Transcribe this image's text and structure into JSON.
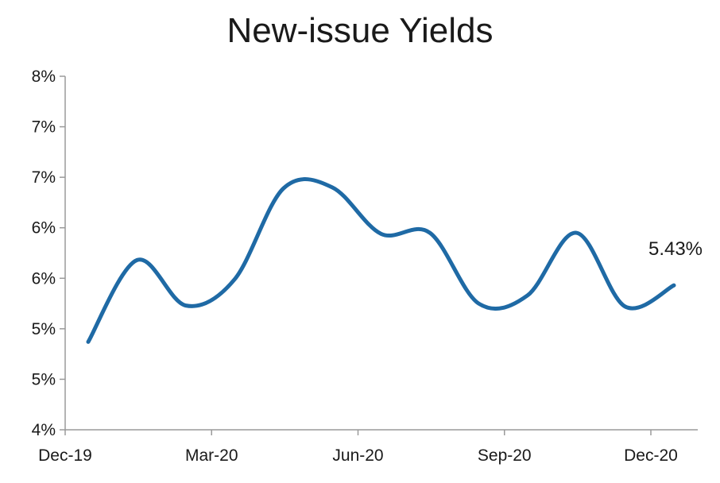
{
  "chart_data": {
    "type": "line",
    "title": "New-issue Yields",
    "xlabel": "",
    "ylabel": "",
    "y_tick_labels": [
      "4%",
      "5%",
      "5%",
      "6%",
      "6%",
      "7%",
      "7%",
      "8%"
    ],
    "x_tick_labels": [
      "Dec-19",
      "Mar-20",
      "Jun-20",
      "Sep-20",
      "Dec-20"
    ],
    "ylim": [
      4.0,
      7.5
    ],
    "x": [
      "Dec-19",
      "Jan-20",
      "Feb-20",
      "Mar-20",
      "Apr-20",
      "May-20",
      "Jun-20",
      "Jul-20",
      "Aug-20",
      "Sep-20",
      "Oct-20",
      "Nov-20",
      "Dec-20"
    ],
    "series": [
      {
        "values": [
          4.87,
          5.68,
          5.23,
          5.49,
          6.39,
          6.4,
          5.94,
          5.95,
          5.25,
          5.33,
          5.95,
          5.22,
          5.43
        ],
        "color": "#1f6aa5"
      }
    ],
    "end_annotation": "5.43%",
    "grid": false
  }
}
